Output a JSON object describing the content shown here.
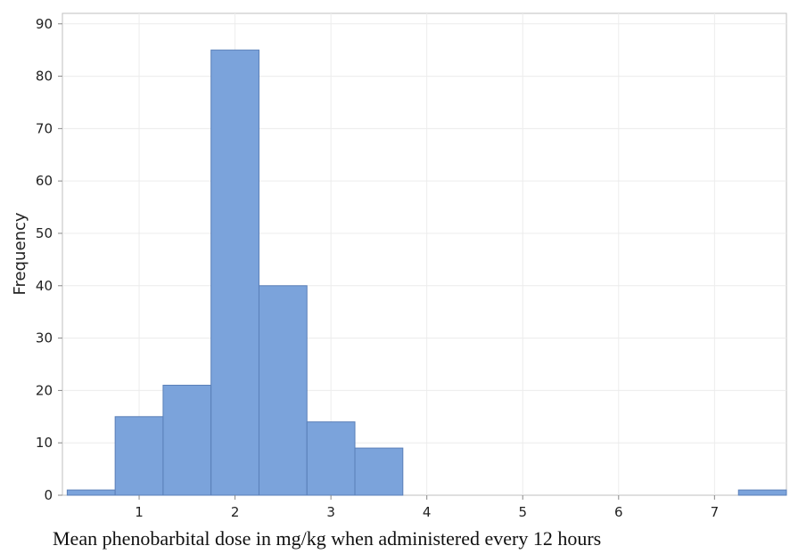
{
  "chart_data": {
    "type": "bar",
    "subtype": "histogram",
    "xlabel": "Mean phenobarbital dose in mg/kg when administered every 12 hours",
    "ylabel": "Frequency",
    "xlim": [
      0.2,
      7.75
    ],
    "ylim": [
      0,
      92
    ],
    "x_ticks": [
      1,
      2,
      3,
      4,
      5,
      6,
      7
    ],
    "y_ticks": [
      0,
      10,
      20,
      30,
      40,
      50,
      60,
      70,
      80,
      90
    ],
    "bin_width": 0.5,
    "bins": [
      {
        "x0": 0.25,
        "x1": 0.75,
        "value": 1
      },
      {
        "x0": 0.75,
        "x1": 1.25,
        "value": 15
      },
      {
        "x0": 1.25,
        "x1": 1.75,
        "value": 21
      },
      {
        "x0": 1.75,
        "x1": 2.25,
        "value": 85
      },
      {
        "x0": 2.25,
        "x1": 2.75,
        "value": 40
      },
      {
        "x0": 2.75,
        "x1": 3.25,
        "value": 14
      },
      {
        "x0": 3.25,
        "x1": 3.75,
        "value": 9
      },
      {
        "x0": 7.25,
        "x1": 7.75,
        "value": 1
      }
    ],
    "grid": true,
    "colors": {
      "bar": "#7ba3db",
      "bar_edge": "#5a7fb8",
      "grid": "#ececec",
      "axis": "#bfbfbf"
    }
  }
}
